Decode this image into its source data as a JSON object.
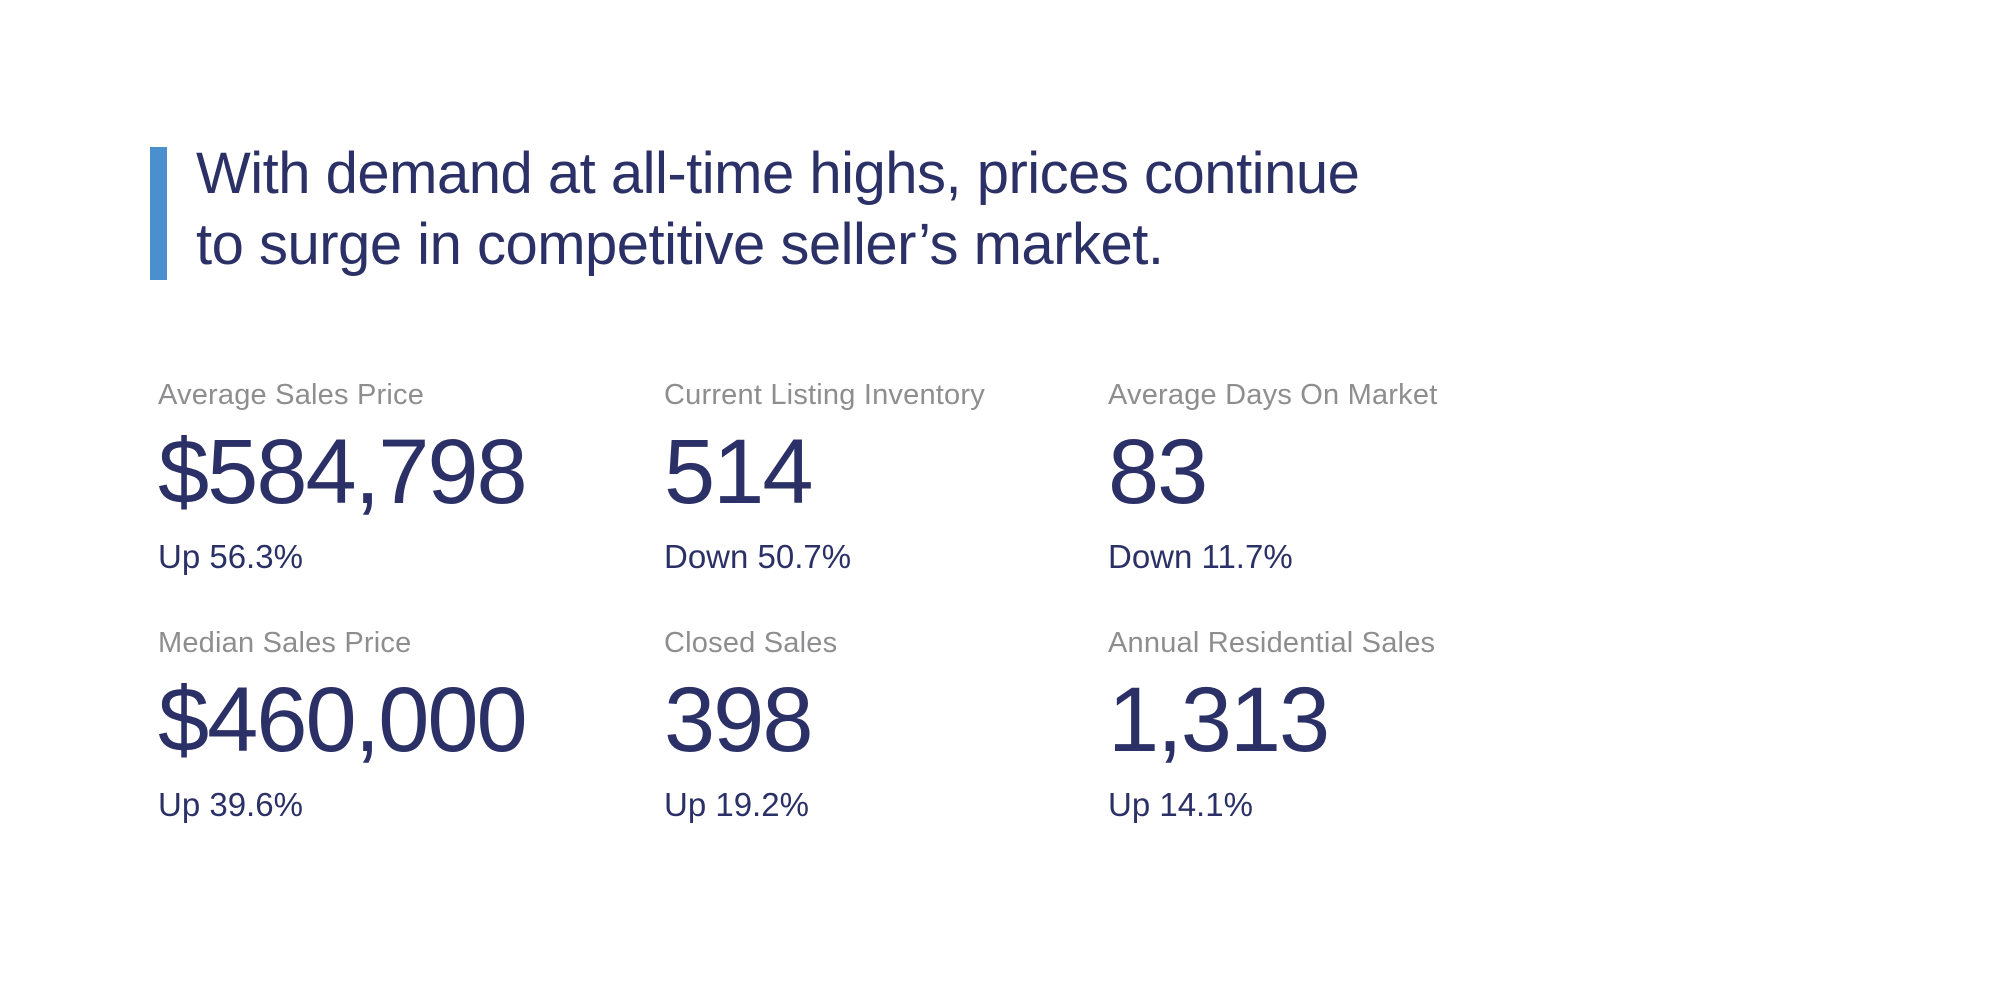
{
  "headline": {
    "lines": [
      "With demand at all-time highs, prices continue",
      "to surge in competitive seller’s market."
    ]
  },
  "stats": [
    {
      "label": "Average Sales Price",
      "value": "$584,798",
      "change": "Up 56.3%"
    },
    {
      "label": "Current Listing Inventory",
      "value": "514",
      "change": "Down 50.7%"
    },
    {
      "label": "Average Days On Market",
      "value": "83",
      "change": "Down 11.7%"
    },
    {
      "label": "Median Sales Price",
      "value": "$460,000",
      "change": "Up 39.6%"
    },
    {
      "label": "Closed Sales",
      "value": "398",
      "change": "Up 19.2%"
    },
    {
      "label": "Annual Residential Sales",
      "value": "1,313",
      "change": "Up 14.1%"
    }
  ],
  "colors": {
    "accent": "#4c8fce",
    "navy_text": "#2b3166",
    "label_gray": "#8e8e90",
    "background": "#ffffff"
  }
}
